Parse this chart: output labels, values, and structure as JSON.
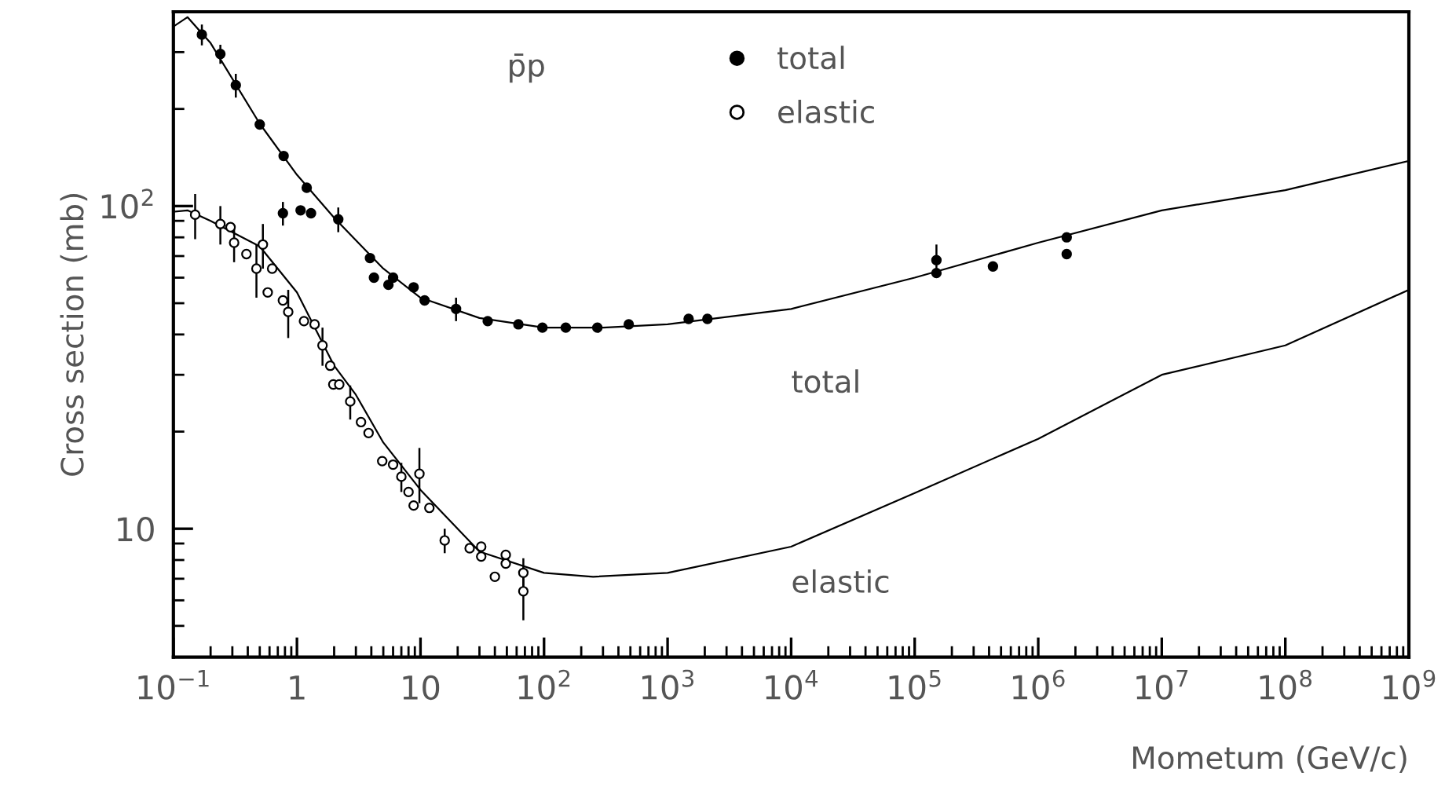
{
  "chart_data": {
    "type": "scatter",
    "xlabel": "Mometum (GeV/c)",
    "ylabel": "Cross section (mb)",
    "log": "xy",
    "grid": false,
    "legend": "top",
    "marker": "circle",
    "xlim": [
      0.1,
      1000000000
    ],
    "ylim": [
      4,
      400
    ],
    "xticks": [
      {
        "value": 0.1,
        "label": "10$^{−1}$"
      },
      1,
      10,
      {
        "value": 100,
        "label": "10$^{2}$"
      },
      {
        "value": 1000,
        "label": "10$^{3}$"
      },
      {
        "value": 10000,
        "label": "10$^{4}$"
      },
      {
        "value": 100000,
        "label": "10$^{5}$"
      },
      {
        "value": 1000000,
        "label": "10$^{6}$"
      },
      {
        "value": 10000000,
        "label": "10$^{7}$"
      },
      {
        "value": 100000000,
        "label": "10$^{8}$"
      },
      {
        "value": 1000000000,
        "label": "10$^{9}$"
      }
    ],
    "yticks": [
      10,
      {
        "value": 100,
        "label": "10$^{2}$"
      }
    ],
    "annotations": [
      "p̄p",
      "total",
      "elastic"
    ],
    "series": [
      {
        "name": "total",
        "color": "#000000",
        "x": [
          0.17,
          0.24,
          0.32,
          0.5,
          0.78,
          0.77,
          1.07,
          1.2,
          1.3,
          2.16,
          3.9,
          4.2,
          5.5,
          6.0,
          8.8,
          10.8,
          19.4,
          35,
          62,
          97,
          150,
          270,
          485,
          1480,
          2100,
          150000,
          150000,
          430000,
          1700000,
          1700000
        ],
        "values": [
          340,
          296,
          237,
          179,
          143,
          95,
          97,
          114,
          95,
          91,
          69,
          60,
          57,
          60,
          56,
          51,
          48,
          44,
          43,
          42,
          42,
          42,
          43,
          44.7,
          44.7,
          68,
          62,
          65,
          80,
          71
        ],
        "errors": [
          25,
          20,
          20,
          null,
          null,
          8,
          null,
          null,
          null,
          8,
          null,
          null,
          null,
          null,
          null,
          null,
          4,
          null,
          null,
          null,
          null,
          null,
          null,
          null,
          null,
          8,
          null,
          null,
          null,
          null
        ]
      },
      {
        "name": "elastic",
        "color": "#ffffff",
        "x": [
          0.15,
          0.24,
          0.29,
          0.31,
          0.39,
          0.47,
          0.53,
          0.58,
          0.63,
          0.77,
          0.85,
          1.14,
          1.39,
          1.61,
          1.86,
          1.97,
          2.2,
          2.7,
          3.3,
          3.8,
          4.9,
          6.0,
          7.0,
          8.0,
          8.8,
          9.8,
          11.8,
          15.7,
          25,
          31,
          31,
          40,
          49,
          49,
          68,
          68
        ],
        "values": [
          94,
          88,
          86,
          77,
          71,
          64,
          76,
          54,
          64,
          51,
          47,
          44,
          43,
          37,
          32,
          28,
          28,
          24.8,
          21.4,
          19.8,
          16.2,
          15.8,
          14.5,
          13,
          11.8,
          14.8,
          11.6,
          9.2,
          8.7,
          8.8,
          8.2,
          7.1,
          8.3,
          7.8,
          7.3,
          6.4
        ],
        "errors": [
          15,
          12,
          null,
          10,
          null,
          12,
          12,
          null,
          null,
          null,
          8,
          null,
          null,
          5,
          null,
          null,
          null,
          3,
          null,
          null,
          null,
          null,
          1.5,
          null,
          null,
          [
            12,
            17.8
          ],
          null,
          0.8,
          null,
          null,
          null,
          null,
          null,
          null,
          0.8,
          1.2
        ]
      },
      {
        "type": "line",
        "marker": "none",
        "color": "#000000",
        "x": [
          0.1,
          0.13,
          0.2,
          0.5,
          1,
          2,
          5,
          10,
          30,
          100,
          300,
          1000,
          10000,
          100000,
          1000000,
          10000000,
          100000000,
          1000000000
        ],
        "values": [
          360,
          385,
          320,
          180,
          125,
          92,
          64,
          52,
          45,
          42,
          42,
          43,
          48,
          60,
          77,
          97,
          112,
          138
        ]
      },
      {
        "type": "line",
        "marker": "none",
        "color": "#000000",
        "x": [
          0.1,
          0.13,
          0.2,
          0.5,
          1,
          2,
          3,
          5,
          10,
          30,
          100,
          250,
          1000,
          10000,
          100000,
          1000000,
          10000000,
          100000000,
          1000000000
        ],
        "values": [
          96,
          97,
          90,
          75,
          54,
          32,
          26,
          18.5,
          13.2,
          8.5,
          7.3,
          7.1,
          7.3,
          8.8,
          12.9,
          19,
          30,
          37,
          55
        ]
      }
    ]
  }
}
